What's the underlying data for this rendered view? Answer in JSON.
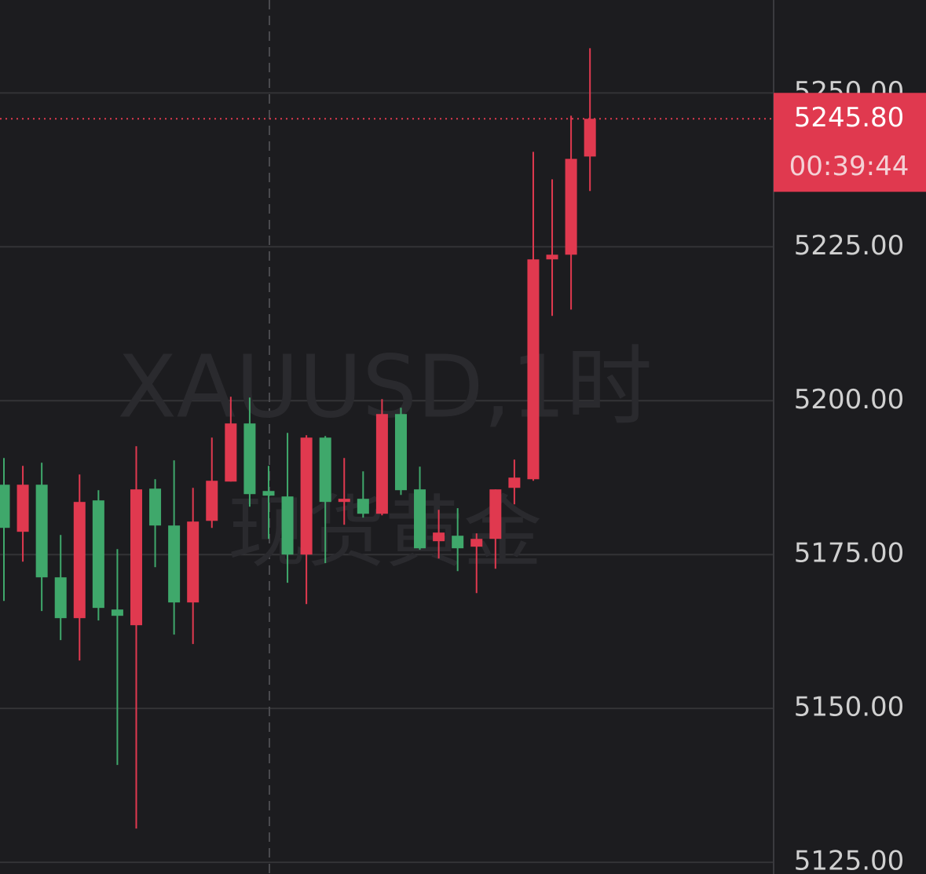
{
  "chart_data": {
    "type": "candlestick",
    "open": [
      5186.35,
      5178.7,
      5186.35,
      5171.3,
      5164.67,
      5183.8,
      5166.07,
      5163.52,
      5185.71,
      5179.72,
      5167.22,
      5180.48,
      5186.86,
      5196.3,
      5185.33,
      5184.44,
      5175.0,
      5194.0,
      5183.55,
      5184.06,
      5181.63,
      5197.83,
      5185.59,
      5177.17,
      5178.06,
      5176.28,
      5177.55,
      5185.84,
      5187.24,
      5222.96,
      5223.72,
      5239.67
    ],
    "high": [
      5190.69,
      5189.41,
      5189.92,
      5178.19,
      5188.01,
      5185.46,
      5175.89,
      5192.6,
      5187.24,
      5190.31,
      5185.84,
      5194.0,
      5200.64,
      5200.51,
      5189.41,
      5194.77,
      5194.39,
      5194.26,
      5190.69,
      5188.52,
      5200.26,
      5198.85,
      5189.29,
      5182.27,
      5182.53,
      5178.44,
      5185.59,
      5190.43,
      5240.43,
      5235.97,
      5246.3,
      5257.27
    ],
    "low": [
      5167.47,
      5173.85,
      5165.82,
      5161.1,
      5157.78,
      5164.29,
      5140.82,
      5130.48,
      5172.96,
      5161.99,
      5160.46,
      5179.34,
      5186.86,
      5182.78,
      5177.55,
      5170.41,
      5166.96,
      5173.6,
      5179.85,
      5181.0,
      5181.38,
      5184.69,
      5175.77,
      5174.36,
      5172.32,
      5168.75,
      5172.7,
      5183.16,
      5186.99,
      5213.78,
      5214.8,
      5234.06
    ],
    "close": [
      5179.34,
      5186.35,
      5171.3,
      5164.67,
      5183.55,
      5166.33,
      5165.05,
      5185.59,
      5179.72,
      5167.22,
      5180.36,
      5186.99,
      5196.3,
      5184.82,
      5184.57,
      5175.0,
      5194.0,
      5183.55,
      5184.06,
      5181.63,
      5197.83,
      5185.46,
      5176.02,
      5178.57,
      5176.02,
      5177.55,
      5185.59,
      5187.5,
      5222.96,
      5223.72,
      5239.29,
      5245.8
    ],
    "up_color": "#e0394f",
    "down_color": "#3fa86b",
    "ylim": [
      5123.1,
      5265.1
    ],
    "yticks": [
      {
        "value": 5125,
        "label": "5125.00"
      },
      {
        "value": 5150,
        "label": "5150.00"
      },
      {
        "value": 5175,
        "label": "5175.00"
      },
      {
        "value": 5200,
        "label": "5200.00"
      },
      {
        "value": 5225,
        "label": "5225.00"
      },
      {
        "value": 5250,
        "label": "5250.00"
      }
    ],
    "grid": true,
    "watermark": [
      "XAUUSD,1时",
      "现货黄金"
    ],
    "last_price_label": "5245.80",
    "countdown": "00:39:44"
  }
}
